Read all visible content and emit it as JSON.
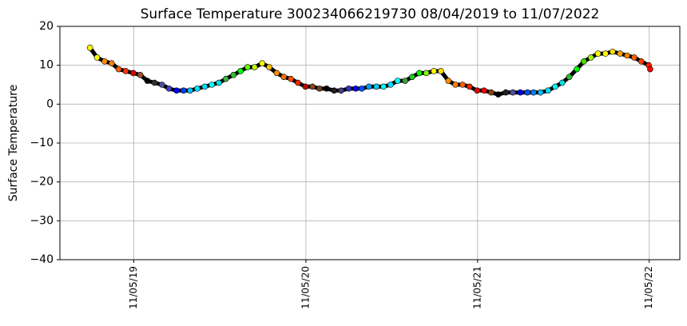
{
  "chart_data": {
    "type": "scatter",
    "title": "Surface Temperature 300234066219730  08/04/2019 to 11/07/2022",
    "y_label": "Surface Temperature",
    "x": [
      "08/04/19",
      "08/19/19",
      "09/04/19",
      "09/19/19",
      "10/04/19",
      "10/19/19",
      "11/04/19",
      "11/19/19",
      "12/04/19",
      "12/19/19",
      "01/04/20",
      "01/19/20",
      "02/04/20",
      "02/19/20",
      "03/04/20",
      "03/19/20",
      "04/04/20",
      "04/19/20",
      "05/04/20",
      "05/19/20",
      "06/04/20",
      "06/19/20",
      "07/04/20",
      "07/19/20",
      "08/04/20",
      "08/19/20",
      "09/04/20",
      "09/19/20",
      "10/04/20",
      "10/19/20",
      "11/04/20",
      "11/19/20",
      "12/04/20",
      "12/19/20",
      "01/04/21",
      "01/19/21",
      "02/04/21",
      "02/19/21",
      "03/04/21",
      "03/19/21",
      "04/04/21",
      "04/19/21",
      "05/04/21",
      "05/19/21",
      "06/04/21",
      "06/19/21",
      "07/04/21",
      "07/19/21",
      "08/04/21",
      "08/19/21",
      "09/04/21",
      "09/19/21",
      "10/04/21",
      "10/19/21",
      "11/04/21",
      "11/19/21",
      "12/04/21",
      "12/19/21",
      "01/04/22",
      "01/19/22",
      "02/04/22",
      "02/19/22",
      "03/04/22",
      "03/19/22",
      "04/04/22",
      "04/19/22",
      "05/04/22",
      "05/19/22",
      "06/04/22",
      "06/19/22",
      "07/04/22",
      "07/19/22",
      "08/04/22",
      "08/19/22",
      "09/04/22",
      "09/19/22",
      "10/04/22",
      "10/19/22",
      "11/04/22",
      "11/07/22"
    ],
    "values": [
      14.5,
      12,
      11,
      10.5,
      9,
      8.5,
      8,
      7.5,
      6,
      5.5,
      5,
      4,
      3.5,
      3.5,
      3.5,
      4,
      4.5,
      5,
      5.5,
      6.5,
      7.5,
      8.5,
      9.5,
      9.5,
      10.5,
      9.5,
      8,
      7,
      6.5,
      5.5,
      4.5,
      4.5,
      4,
      4,
      3.5,
      3.5,
      4,
      4,
      4,
      4.5,
      4.5,
      4.5,
      5,
      6,
      6,
      7,
      8,
      8,
      8.5,
      8.5,
      6,
      5,
      5,
      4.5,
      3.5,
      3.5,
      3,
      2.5,
      3,
      3,
      3,
      3,
      3,
      3,
      3.5,
      4.5,
      5.5,
      7,
      9,
      11,
      12,
      13,
      13,
      13.5,
      13,
      12.5,
      12,
      11,
      10,
      9
    ],
    "colors": [
      "#ffff00",
      "#ffff00",
      "#ff8c00",
      "#ff8000",
      "#ff6000",
      "#ff3000",
      "#e00000",
      "#a0522d",
      "#000000",
      "#303030",
      "#5050a0",
      "#4040c0",
      "#0000ff",
      "#0040ff",
      "#00c0ff",
      "#00e0ff",
      "#00e0ff",
      "#00ffff",
      "#00e0e0",
      "#40b040",
      "#30c030",
      "#00ff00",
      "#60ff00",
      "#c0ff00",
      "#ffff00",
      "#ffc000",
      "#ff8c00",
      "#ff7000",
      "#ff5000",
      "#ff2000",
      "#c00000",
      "#8b4513",
      "#704020",
      "#000000",
      "#202020",
      "#404080",
      "#3030c0",
      "#0000ff",
      "#0050ff",
      "#00a0ff",
      "#00d0ff",
      "#00ffff",
      "#00e0ff",
      "#00ffff",
      "#40a040",
      "#20d020",
      "#00ff00",
      "#80ff00",
      "#ffff00",
      "#ffe000",
      "#ff8c00",
      "#ff8000",
      "#ff6000",
      "#ff2000",
      "#e00000",
      "#ff0000",
      "#8b4513",
      "#000000",
      "#202020",
      "#5050a0",
      "#0000ff",
      "#0050ff",
      "#0080ff",
      "#00c0ff",
      "#00e0ff",
      "#00ffff",
      "#00e0e0",
      "#30c030",
      "#00ff00",
      "#40e000",
      "#a0ff00",
      "#ffff00",
      "#ffff00",
      "#ffe000",
      "#ffa000",
      "#ff8000",
      "#ff6000",
      "#ff4000",
      "#ff2000",
      "#ff0000"
    ],
    "xlim": [
      "06/01/19",
      "01/09/23"
    ],
    "xticks": [
      "11/05/19",
      "11/05/20",
      "11/05/21",
      "11/05/22"
    ],
    "ylim": [
      -40,
      20
    ],
    "yticks": [
      {
        "value": -40,
        "label": "−40"
      },
      {
        "value": -30,
        "label": "−30"
      },
      {
        "value": -20,
        "label": "−20"
      },
      {
        "value": -10,
        "label": "−10"
      },
      0,
      10,
      20
    ],
    "grid": true
  }
}
